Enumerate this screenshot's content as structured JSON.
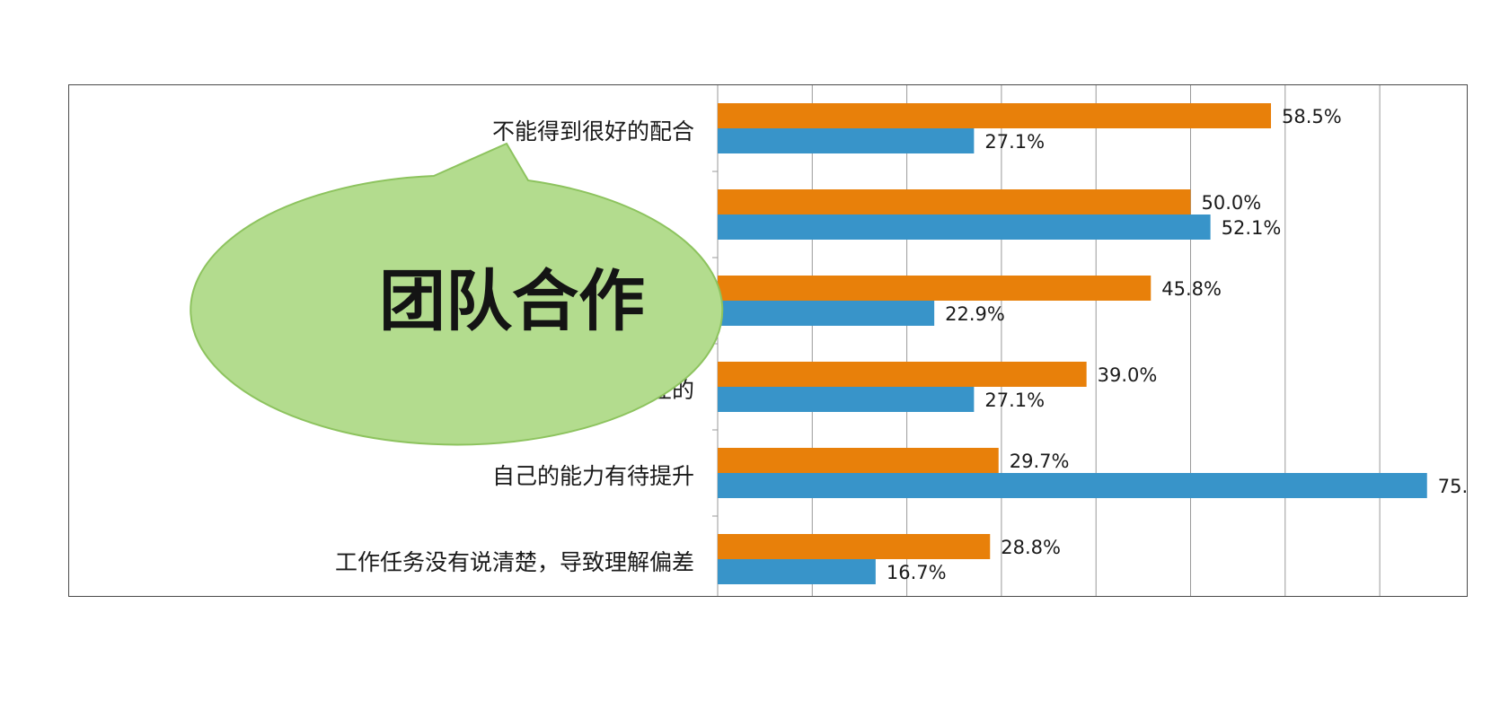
{
  "chart_data": {
    "type": "bar",
    "orientation": "horizontal",
    "categories": [
      "不能得到很好的配合",
      "",
      "",
      "接主管给予临时性的",
      "自己的能力有待提升",
      "工作任务没有说清楚，导致理解偏差"
    ],
    "series": [
      {
        "color": "#E8800A",
        "values": [
          58.5,
          50.0,
          45.8,
          39.0,
          29.7,
          28.8
        ],
        "labels": [
          "58.5%",
          "50.0%",
          "45.8%",
          "39.0%",
          "29.7%",
          "28.8%"
        ]
      },
      {
        "color": "#3894C9",
        "values": [
          27.1,
          52.1,
          22.9,
          27.1,
          75.0,
          16.7
        ],
        "labels": [
          "27.1%",
          "52.1%",
          "22.9%",
          "27.1%",
          "75.",
          "16.7%"
        ]
      }
    ],
    "xlim": [
      0,
      80
    ],
    "grid": true
  },
  "callout": {
    "text": "团队合作",
    "fill": "#B3DC8E",
    "stroke": "#8DC35E"
  }
}
